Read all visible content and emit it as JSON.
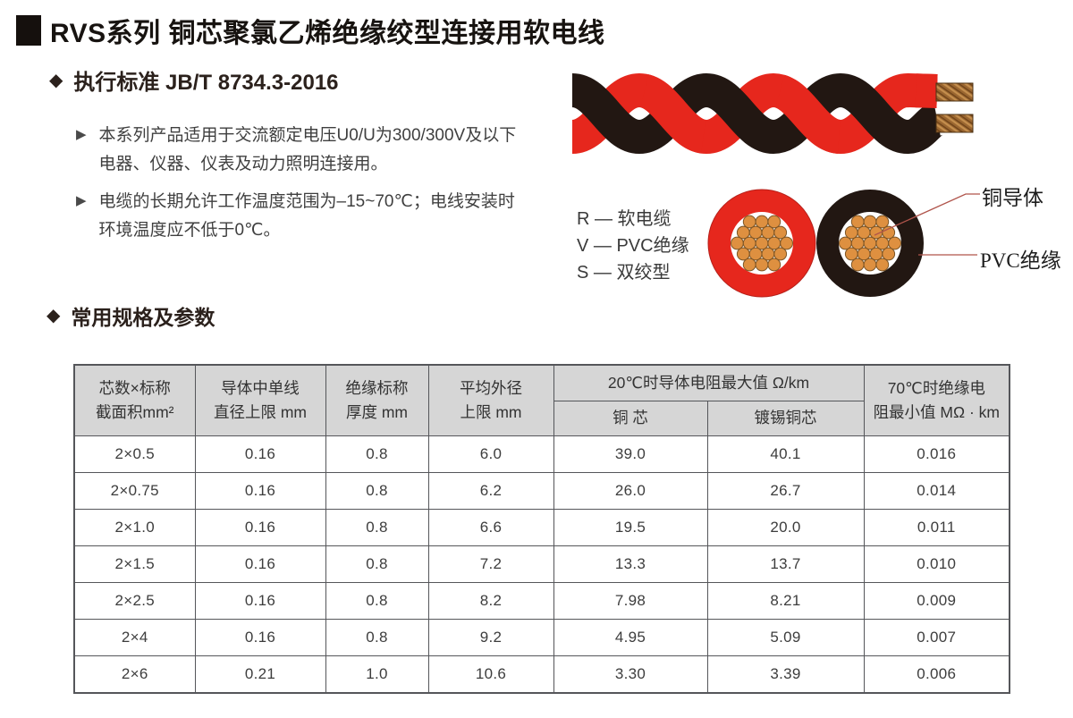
{
  "header": {
    "title": "RVS系列 铜芯聚氯乙烯绝缘绞型连接用软电线",
    "standard": "执行标准 JB/T 8734.3-2016"
  },
  "features": [
    {
      "lines": [
        "本系列产品适用于交流额定电压U0/U为300/300V及以下",
        "电器、仪器、仪表及动力照明连接用。"
      ]
    },
    {
      "lines": [
        "电缆的长期允许工作温度范围为–15~70℃；电线安装时",
        "环境温度应不低于0℃。"
      ]
    }
  ],
  "code_legend": {
    "items": [
      "R — 软电缆",
      "V — PVC绝缘",
      "S — 双绞型"
    ]
  },
  "callouts": {
    "conductor": "铜导体",
    "insulation": "PVC绝缘"
  },
  "specs_section": {
    "title": "常用规格及参数"
  },
  "spec_table": {
    "headers": {
      "col1": [
        "芯数×标称",
        "截面积mm²"
      ],
      "col2": [
        "导体中单线",
        "直径上限 mm"
      ],
      "col3": [
        "绝缘标称",
        "厚度 mm"
      ],
      "col4": [
        "平均外径",
        "上限 mm"
      ],
      "group": "20℃时导体电阻最大值 Ω/km",
      "sub1": "铜 芯",
      "sub2": "镀锡铜芯",
      "col7": [
        "70℃时绝缘电",
        "阻最小值 MΩ · km"
      ]
    },
    "rows": [
      [
        "2×0.5",
        "0.16",
        "0.8",
        "6.0",
        "39.0",
        "40.1",
        "0.016"
      ],
      [
        "2×0.75",
        "0.16",
        "0.8",
        "6.2",
        "26.0",
        "26.7",
        "0.014"
      ],
      [
        "2×1.0",
        "0.16",
        "0.8",
        "6.6",
        "19.5",
        "20.0",
        "0.011"
      ],
      [
        "2×1.5",
        "0.16",
        "0.8",
        "7.2",
        "13.3",
        "13.7",
        "0.010"
      ],
      [
        "2×2.5",
        "0.16",
        "0.8",
        "8.2",
        "7.98",
        "8.21",
        "0.009"
      ],
      [
        "2×4",
        "0.16",
        "0.8",
        "9.2",
        "4.95",
        "5.09",
        "0.007"
      ],
      [
        "2×6",
        "0.21",
        "1.0",
        "10.6",
        "3.30",
        "3.39",
        "0.006"
      ]
    ]
  },
  "colors": {
    "wire_red": "#e6271d",
    "wire_black": "#221712",
    "copper_strand": "#de9040",
    "table_header_bg": "#d6d6d6",
    "table_border": "#55565a",
    "callout_line": "#b0544b"
  }
}
